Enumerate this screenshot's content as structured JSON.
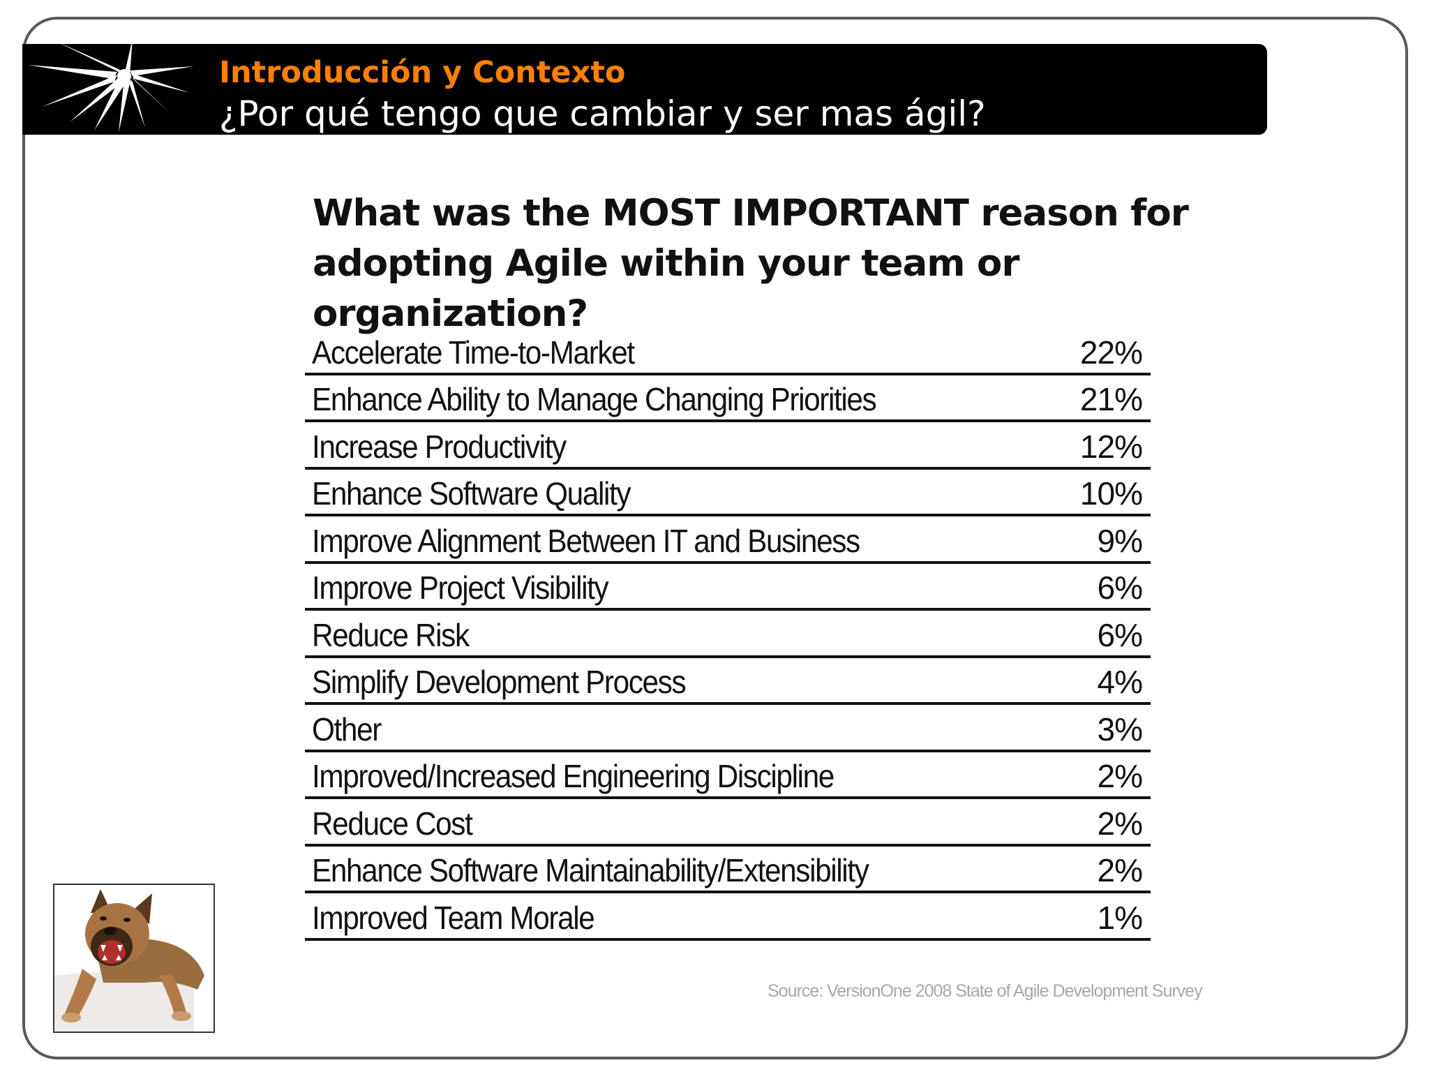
{
  "header": {
    "title": "Introducción y Contexto",
    "subtitle": "¿Por qué tengo que cambiar y ser mas ágil?"
  },
  "survey": {
    "question": "What was the MOST IMPORTANT reason for adopting Agile within your team or organization?",
    "rows": [
      {
        "label": "Accelerate Time-to-Market",
        "value": "22%"
      },
      {
        "label": "Enhance Ability to Manage Changing Priorities",
        "value": "21%"
      },
      {
        "label": "Increase Productivity",
        "value": "12%"
      },
      {
        "label": "Enhance Software Quality",
        "value": "10%"
      },
      {
        "label": "Improve Alignment Between IT and Business",
        "value": "9%"
      },
      {
        "label": "Improve Project Visibility",
        "value": "6%"
      },
      {
        "label": "Reduce Risk",
        "value": "6%"
      },
      {
        "label": "Simplify Development Process",
        "value": "4%"
      },
      {
        "label": "Other",
        "value": "3%"
      },
      {
        "label": "Improved/Increased Engineering Discipline",
        "value": "2%"
      },
      {
        "label": "Reduce Cost",
        "value": "2%"
      },
      {
        "label": "Enhance Software Maintainability/Extensibility",
        "value": "2%"
      },
      {
        "label": "Improved Team Morale",
        "value": "1%"
      }
    ],
    "source": "Source: VersionOne 2008 State of Agile Development Survey"
  },
  "colors": {
    "header_background": "#000000",
    "header_title": "#ff8000",
    "header_subtitle": "#ffffff",
    "frame_border": "#595959"
  },
  "images": {
    "header_graphic": "white-starburst",
    "photo": "barking-dog-photo"
  }
}
